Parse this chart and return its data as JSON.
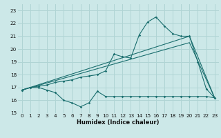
{
  "xlabel": "Humidex (Indice chaleur)",
  "xlim": [
    -0.5,
    23.5
  ],
  "ylim": [
    15,
    23.5
  ],
  "yticks": [
    15,
    16,
    17,
    18,
    19,
    20,
    21,
    22,
    23
  ],
  "xticks": [
    0,
    1,
    2,
    3,
    4,
    5,
    6,
    7,
    8,
    9,
    10,
    11,
    12,
    13,
    14,
    15,
    16,
    17,
    18,
    19,
    20,
    21,
    22,
    23
  ],
  "background_color": "#cce8e8",
  "grid_color": "#b0d4d4",
  "line_color": "#1a6e6e",
  "line1_x": [
    0,
    1,
    2,
    3,
    4,
    5,
    6,
    7,
    8,
    9,
    10,
    11,
    12,
    13,
    14,
    15,
    16,
    17,
    18,
    19,
    20,
    21,
    22,
    23
  ],
  "line1_y": [
    16.8,
    17.0,
    17.0,
    16.8,
    16.6,
    16.0,
    15.8,
    15.5,
    15.8,
    16.7,
    16.3,
    16.3,
    16.3,
    16.3,
    16.3,
    16.3,
    16.3,
    16.3,
    16.3,
    16.3,
    16.3,
    16.3,
    16.3,
    16.2
  ],
  "line2_x": [
    0,
    1,
    2,
    3,
    4,
    5,
    6,
    7,
    8,
    9,
    10,
    11,
    12,
    13,
    14,
    15,
    16,
    17,
    18,
    19,
    20,
    21,
    22,
    23
  ],
  "line2_y": [
    16.8,
    17.0,
    17.1,
    17.2,
    17.4,
    17.5,
    17.6,
    17.8,
    17.9,
    18.0,
    18.3,
    19.6,
    19.4,
    19.3,
    21.1,
    22.1,
    22.5,
    21.8,
    21.2,
    21.0,
    21.0,
    19.0,
    16.9,
    16.2
  ],
  "line3_x": [
    0,
    20,
    23
  ],
  "line3_y": [
    16.8,
    21.0,
    16.2
  ],
  "line4_x": [
    0,
    20,
    23
  ],
  "line4_y": [
    16.8,
    20.5,
    16.2
  ]
}
